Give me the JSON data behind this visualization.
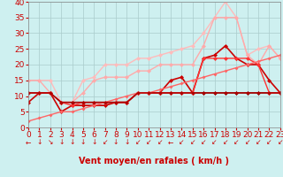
{
  "xlabel": "Vent moyen/en rafales ( km/h )",
  "xlim": [
    0,
    23
  ],
  "ylim": [
    0,
    40
  ],
  "xticks": [
    0,
    1,
    2,
    3,
    4,
    5,
    6,
    7,
    8,
    9,
    10,
    11,
    12,
    13,
    14,
    15,
    16,
    17,
    18,
    19,
    20,
    21,
    22,
    23
  ],
  "yticks": [
    0,
    5,
    10,
    15,
    20,
    25,
    30,
    35,
    40
  ],
  "background_color": "#cef0f0",
  "grid_color": "#aacccc",
  "series": [
    {
      "x": [
        0,
        1,
        2,
        3,
        4,
        5,
        6,
        7,
        8,
        9,
        10,
        11,
        12,
        13,
        14,
        15,
        16,
        17,
        18,
        19,
        20,
        21,
        22,
        23
      ],
      "y": [
        15,
        15,
        15,
        8,
        8,
        15,
        16,
        20,
        20,
        20,
        22,
        22,
        23,
        24,
        25,
        26,
        30,
        35,
        40,
        35,
        23,
        25,
        26,
        22
      ],
      "color": "#ffbbbb",
      "lw": 1.0,
      "ms": 2.5
    },
    {
      "x": [
        0,
        1,
        2,
        3,
        4,
        5,
        6,
        7,
        8,
        9,
        10,
        11,
        12,
        13,
        14,
        15,
        16,
        17,
        18,
        19,
        20,
        21,
        22,
        23
      ],
      "y": [
        15,
        15,
        11,
        8,
        8,
        11,
        15,
        16,
        16,
        16,
        18,
        18,
        20,
        20,
        20,
        20,
        26,
        35,
        35,
        35,
        23,
        20,
        26,
        22
      ],
      "color": "#ffaaaa",
      "lw": 1.0,
      "ms": 2.5
    },
    {
      "x": [
        0,
        1,
        2,
        3,
        4,
        5,
        6,
        7,
        8,
        9,
        10,
        11,
        12,
        13,
        14,
        15,
        16,
        17,
        18,
        19,
        20,
        21,
        22,
        23
      ],
      "y": [
        11,
        11,
        11,
        8,
        8,
        8,
        8,
        8,
        8,
        8,
        11,
        11,
        11,
        11,
        11,
        11,
        11,
        11,
        11,
        11,
        11,
        11,
        11,
        11
      ],
      "color": "#880000",
      "lw": 1.0,
      "ms": 2.5
    },
    {
      "x": [
        0,
        1,
        2,
        3,
        4,
        5,
        6,
        7,
        8,
        9,
        10,
        11,
        12,
        13,
        14,
        15,
        16,
        17,
        18,
        19,
        20,
        21,
        22,
        23
      ],
      "y": [
        8,
        11,
        11,
        5,
        7,
        7,
        7,
        7,
        8,
        8,
        11,
        11,
        11,
        15,
        16,
        11,
        22,
        23,
        26,
        22,
        20,
        20,
        15,
        11
      ],
      "color": "#cc0000",
      "lw": 1.2,
      "ms": 2.5
    },
    {
      "x": [
        0,
        1,
        2,
        3,
        4,
        5,
        6,
        7,
        8,
        9,
        10,
        11,
        12,
        13,
        14,
        15,
        16,
        17,
        18,
        19,
        20,
        21,
        22,
        23
      ],
      "y": [
        11,
        11,
        11,
        8,
        7,
        8,
        8,
        8,
        8,
        8,
        11,
        11,
        11,
        11,
        11,
        11,
        22,
        22,
        22,
        22,
        22,
        20,
        11,
        11
      ],
      "color": "#ff3333",
      "lw": 1.0,
      "ms": 2.5
    },
    {
      "x": [
        0,
        1,
        2,
        3,
        4,
        5,
        6,
        7,
        8,
        9,
        10,
        11,
        12,
        13,
        14,
        15,
        16,
        17,
        18,
        19,
        20,
        21,
        22,
        23
      ],
      "y": [
        2,
        3,
        4,
        5,
        5,
        6,
        7,
        8,
        9,
        10,
        11,
        11,
        12,
        13,
        14,
        15,
        16,
        17,
        18,
        19,
        20,
        21,
        22,
        23
      ],
      "color": "#ff6666",
      "lw": 1.0,
      "ms": 2.0
    },
    {
      "x": [
        0,
        1,
        2,
        3,
        4,
        5,
        6,
        7,
        8,
        9,
        10,
        11,
        12,
        13,
        14,
        15,
        16,
        17,
        18,
        19,
        20,
        21,
        22,
        23
      ],
      "y": [
        11,
        11,
        11,
        8,
        8,
        8,
        8,
        8,
        8,
        8,
        11,
        11,
        11,
        11,
        11,
        11,
        11,
        11,
        11,
        11,
        11,
        11,
        11,
        11
      ],
      "color": "#aa0000",
      "lw": 1.0,
      "ms": 2.0
    }
  ],
  "arrow_color": "#cc0000",
  "xlabel_color": "#cc0000",
  "xlabel_fontsize": 7,
  "tick_fontsize": 6.5,
  "tick_color": "#cc0000"
}
